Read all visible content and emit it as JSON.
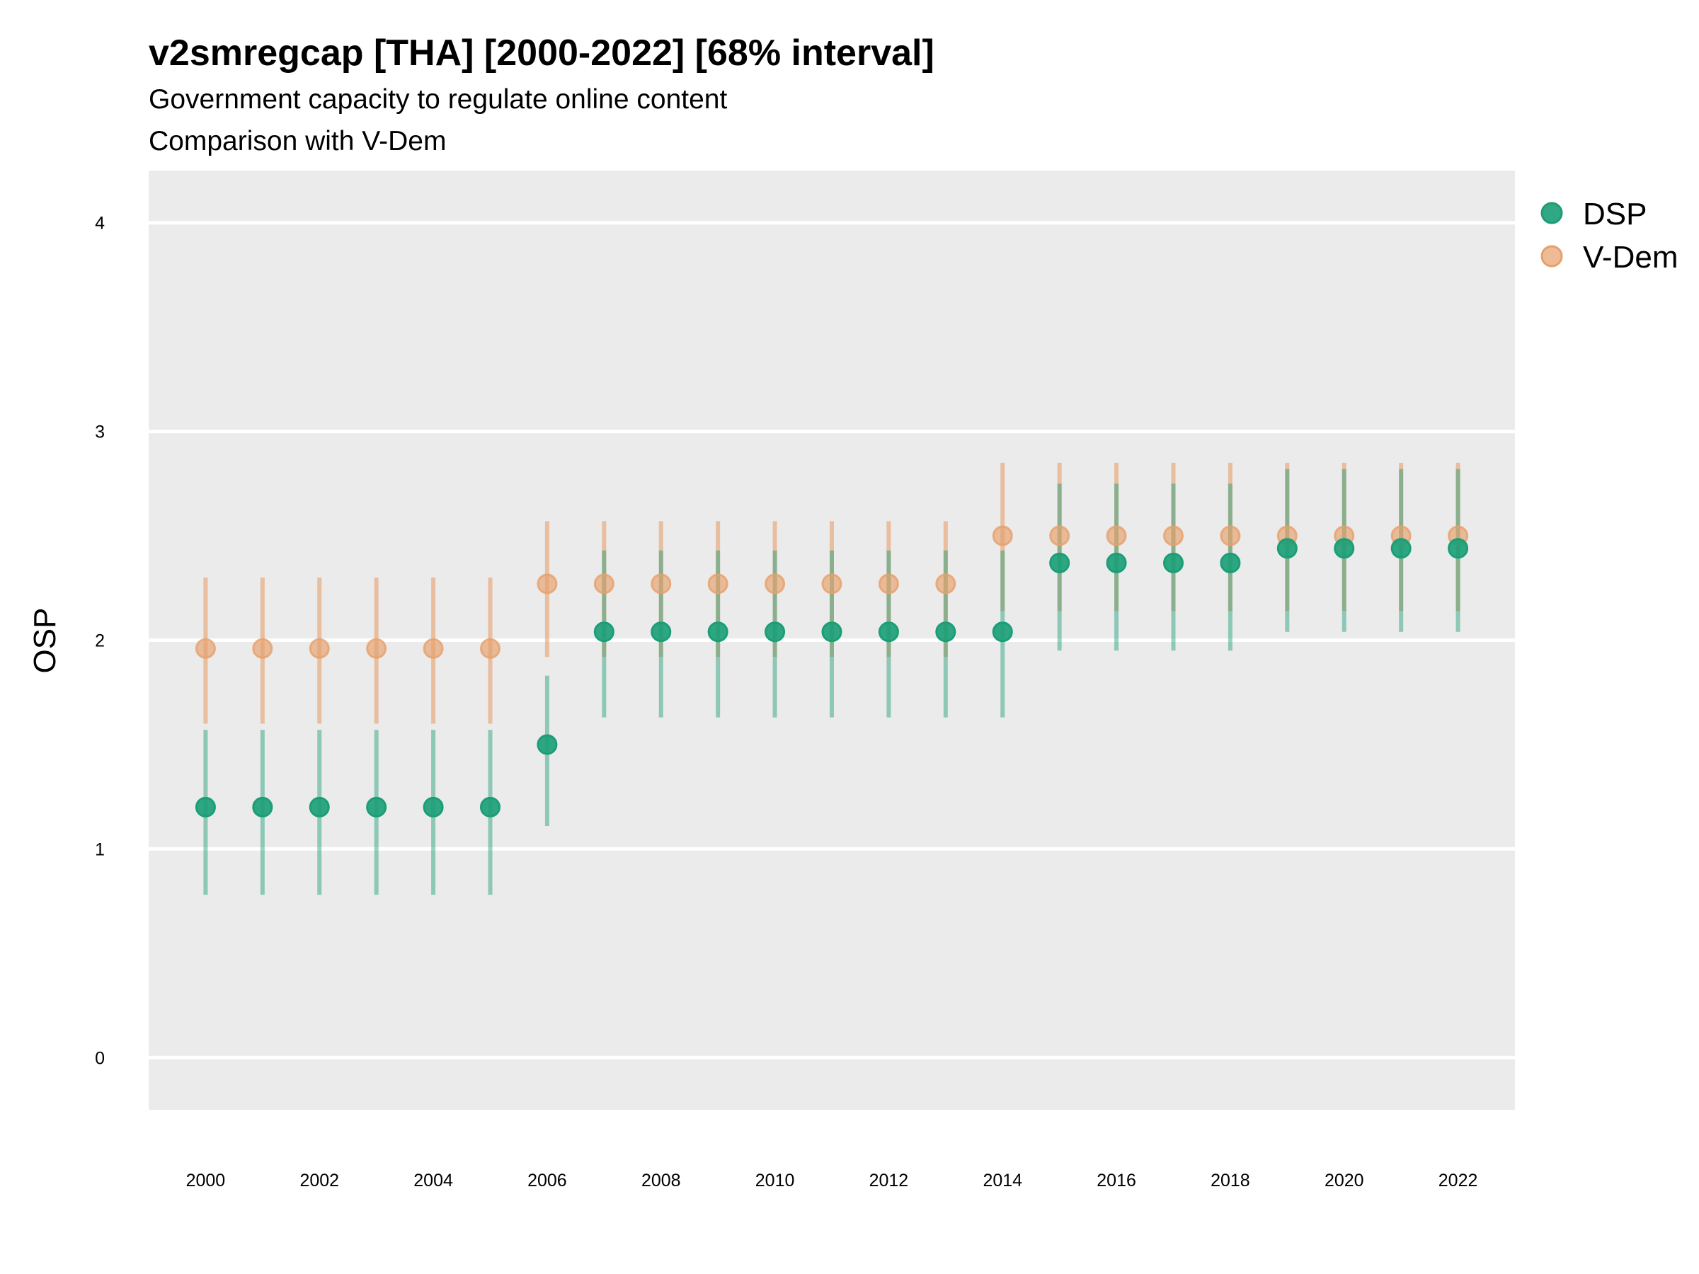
{
  "chart_data": {
    "type": "scatter",
    "title": "v2smregcap [THA] [2000-2022] [68% interval]",
    "subtitle": "Government capacity to regulate online content",
    "subtitle2": "Comparison with V-Dem",
    "xlabel": "",
    "ylabel": "OSP",
    "x": [
      2000,
      2001,
      2002,
      2003,
      2004,
      2005,
      2006,
      2007,
      2008,
      2009,
      2010,
      2011,
      2012,
      2013,
      2014,
      2015,
      2016,
      2017,
      2018,
      2019,
      2020,
      2021,
      2022
    ],
    "x_ticks": [
      "2000",
      "2002",
      "2004",
      "2006",
      "2008",
      "2010",
      "2012",
      "2014",
      "2016",
      "2018",
      "2020",
      "2022"
    ],
    "y_ticks": [
      "0",
      "1",
      "2",
      "3",
      "4"
    ],
    "xlim": [
      1999.0,
      2023.0
    ],
    "ylim": [
      -0.25,
      4.25
    ],
    "grid": true,
    "legend_position": "right",
    "series": [
      {
        "name": "V-Dem",
        "color": "#E6A06B",
        "values": [
          1.96,
          1.96,
          1.96,
          1.96,
          1.96,
          1.96,
          2.27,
          2.27,
          2.27,
          2.27,
          2.27,
          2.27,
          2.27,
          2.27,
          2.5,
          2.5,
          2.5,
          2.5,
          2.5,
          2.5,
          2.5,
          2.5,
          2.5
        ],
        "lower": [
          1.6,
          1.6,
          1.6,
          1.6,
          1.6,
          1.6,
          1.92,
          1.92,
          1.92,
          1.92,
          1.92,
          1.92,
          1.92,
          1.92,
          2.14,
          2.14,
          2.14,
          2.14,
          2.14,
          2.14,
          2.14,
          2.14,
          2.14
        ],
        "upper": [
          2.3,
          2.3,
          2.3,
          2.3,
          2.3,
          2.3,
          2.57,
          2.57,
          2.57,
          2.57,
          2.57,
          2.57,
          2.57,
          2.57,
          2.85,
          2.85,
          2.85,
          2.85,
          2.85,
          2.85,
          2.85,
          2.85,
          2.85
        ]
      },
      {
        "name": "DSP",
        "color": "#1B9E77",
        "values": [
          1.2,
          1.2,
          1.2,
          1.2,
          1.2,
          1.2,
          1.5,
          2.04,
          2.04,
          2.04,
          2.04,
          2.04,
          2.04,
          2.04,
          2.04,
          2.37,
          2.37,
          2.37,
          2.37,
          2.44,
          2.44,
          2.44,
          2.44
        ],
        "lower": [
          0.78,
          0.78,
          0.78,
          0.78,
          0.78,
          0.78,
          1.11,
          1.63,
          1.63,
          1.63,
          1.63,
          1.63,
          1.63,
          1.63,
          1.63,
          1.95,
          1.95,
          1.95,
          1.95,
          2.04,
          2.04,
          2.04,
          2.04
        ],
        "upper": [
          1.57,
          1.57,
          1.57,
          1.57,
          1.57,
          1.57,
          1.83,
          2.43,
          2.43,
          2.43,
          2.43,
          2.43,
          2.43,
          2.43,
          2.43,
          2.75,
          2.75,
          2.75,
          2.75,
          2.82,
          2.82,
          2.82,
          2.82
        ]
      }
    ]
  },
  "legend": {
    "items": [
      {
        "label": "DSP",
        "color": "#1B9E77"
      },
      {
        "label": "V-Dem",
        "color": "#E6A06B"
      }
    ]
  }
}
